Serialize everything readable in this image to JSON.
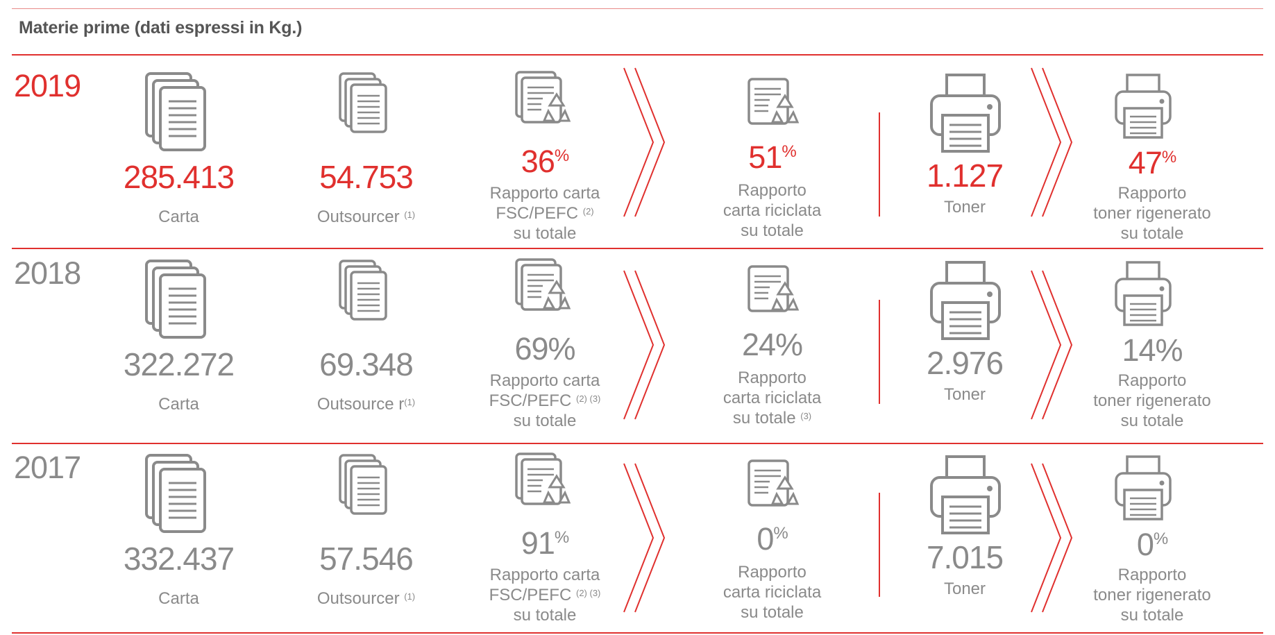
{
  "heading": "Materie prime (dati espressi in Kg.)",
  "rows": [
    {
      "year": "2019",
      "carta_value": "285.413",
      "carta_label": "Carta",
      "outsourcer_value": "54.753",
      "outsourcer_label": "Outsourcer",
      "outsourcer_note": "(1)",
      "fsc_value": "36",
      "fsc_unit": "%",
      "fsc_label1": "Rapporto carta",
      "fsc_label2": "FSC/PEFC",
      "fsc_note": "(2)",
      "fsc_label3": "su totale",
      "ric_value": "51",
      "ric_unit": "%",
      "ric_label1": "Rapporto",
      "ric_label2": "carta riciclata",
      "ric_label3": "su totale",
      "ric_note": "",
      "toner_value": "1.127",
      "toner_label": "Toner",
      "rig_value": "47",
      "rig_unit": "%",
      "rig_label1": "Rapporto",
      "rig_label2": "toner rigenerato",
      "rig_label3": "su totale"
    },
    {
      "year": "2018",
      "carta_value": "322.272",
      "carta_label": "Carta",
      "outsourcer_value": "69.348",
      "outsourcer_label": "Outsource r",
      "outsourcer_note": "(1)",
      "fsc_value": "69%",
      "fsc_unit": "",
      "fsc_label1": "Rapporto carta",
      "fsc_label2": "FSC/PEFC",
      "fsc_note": "(2) (3)",
      "fsc_label3": "su totale",
      "ric_value": "24%",
      "ric_unit": "",
      "ric_label1": "Rapporto",
      "ric_label2": "carta riciclata",
      "ric_label3": "su totale",
      "ric_note": "(3)",
      "toner_value": "2.976",
      "toner_label": "Toner",
      "rig_value": "14%",
      "rig_unit": "",
      "rig_label1": "Rapporto",
      "rig_label2": "toner rigenerato",
      "rig_label3": "su totale"
    },
    {
      "year": "2017",
      "carta_value": "332.437",
      "carta_label": "Carta",
      "outsourcer_value": "57.546",
      "outsourcer_label": "Outsourcer",
      "outsourcer_note": "(1)",
      "fsc_value": "91",
      "fsc_unit": "%",
      "fsc_label1": "Rapporto carta",
      "fsc_label2": "FSC/PEFC",
      "fsc_note": "(2) (3)",
      "fsc_label3": "su totale",
      "ric_value": "0",
      "ric_unit": "%",
      "ric_label1": "Rapporto",
      "ric_label2": "carta riciclata",
      "ric_label3": "su totale",
      "ric_note": "",
      "toner_value": "7.015",
      "toner_label": "Toner",
      "rig_value": "0",
      "rig_unit": "%",
      "rig_label1": "Rapporto",
      "rig_label2": "toner rigenerato",
      "rig_label3": "su totale"
    }
  ],
  "colors": {
    "accent": "#e0302e",
    "text": "#8a8a8a",
    "icon": "#8a8a8a"
  },
  "icons": [
    "paper-stack-icon",
    "paper-small-stack-icon",
    "recycle-paper-icon",
    "printer-icon",
    "chevron-arrow-icon"
  ]
}
